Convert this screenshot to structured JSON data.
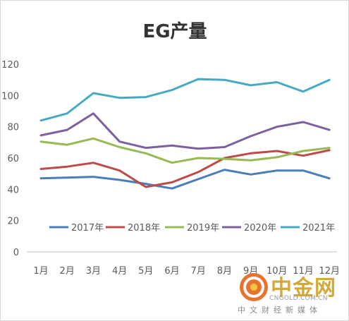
{
  "chart_data": {
    "type": "line",
    "title": "EG产量",
    "xlabel": "",
    "ylabel": "",
    "categories": [
      "1月",
      "2月",
      "3月",
      "4月",
      "5月",
      "6月",
      "7月",
      "8月",
      "9月",
      "10月",
      "11月",
      "12月"
    ],
    "ylim": [
      0,
      120
    ],
    "yticks": [
      0,
      20,
      40,
      60,
      80,
      100,
      120
    ],
    "grid": false,
    "legend_position": "bottom-inside",
    "series": [
      {
        "name": "2017年",
        "color": "#4a7ebb",
        "values": [
          47,
          47.5,
          48,
          46,
          43.5,
          40.5,
          46.5,
          52.5,
          49.5,
          52,
          52,
          47
        ]
      },
      {
        "name": "2018年",
        "color": "#be4b48",
        "values": [
          53,
          54.5,
          57,
          52,
          41.5,
          44.5,
          51,
          60,
          63,
          64.5,
          61.5,
          65
        ]
      },
      {
        "name": "2019年",
        "color": "#98b954",
        "values": [
          70.5,
          68.5,
          72.5,
          67,
          63,
          57,
          60,
          59.5,
          58.5,
          60.5,
          64.5,
          66.5
        ]
      },
      {
        "name": "2020年",
        "color": "#7d60a0",
        "values": [
          74.5,
          78,
          88.5,
          70.5,
          66.5,
          68,
          66,
          67,
          74,
          80,
          83,
          78
        ]
      },
      {
        "name": "2021年",
        "color": "#46aac5",
        "values": [
          84,
          88.5,
          101.5,
          98.5,
          99,
          103.5,
          110.5,
          110,
          106.5,
          108.5,
          102.5,
          110
        ]
      }
    ]
  },
  "watermark": {
    "name": "中金网",
    "domain": "CNGOLD.COM.CN",
    "subtitle": "中文财经新媒体"
  }
}
